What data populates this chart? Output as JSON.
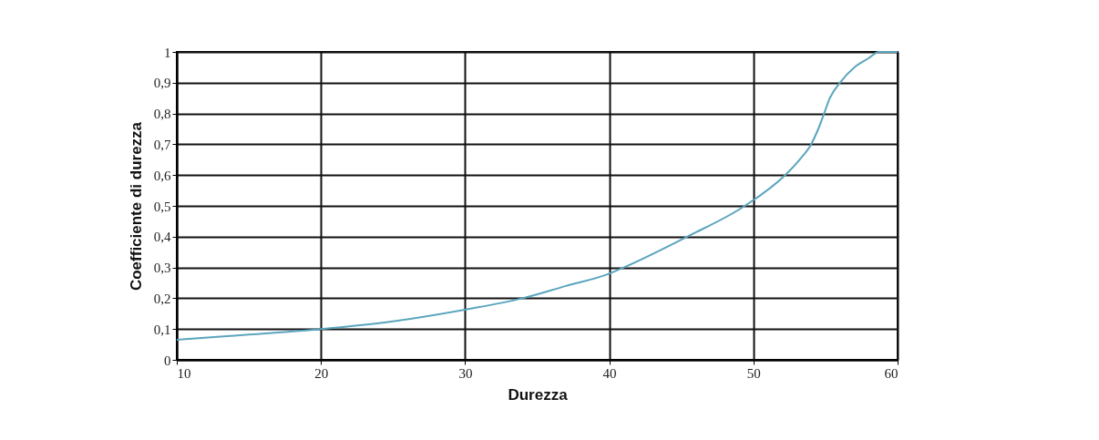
{
  "chart_data": {
    "type": "line",
    "xlabel": "Durezza",
    "ylabel": "Coefficiente di durezza",
    "x": [
      10,
      15,
      20,
      25,
      30,
      34,
      37,
      40,
      41,
      45.4,
      49.4,
      52.2,
      53.2,
      54,
      54.5,
      54.9,
      55.3,
      56,
      57,
      58,
      58.7,
      60
    ],
    "series": [
      {
        "color": "#5aa5bd",
        "values": [
          0.065,
          0.082,
          0.1,
          0.125,
          0.163,
          0.2,
          0.24,
          0.28,
          0.3,
          0.4,
          0.5,
          0.6,
          0.65,
          0.7,
          0.75,
          0.8,
          0.85,
          0.9,
          0.95,
          0.98,
          1,
          1
        ]
      }
    ],
    "xlim": [
      10,
      60
    ],
    "xticks": [
      10,
      20,
      30,
      40,
      50,
      60
    ],
    "ylim": [
      0,
      1
    ],
    "yticks": [
      0,
      {
        "value": 0.1,
        "label": "0,1"
      },
      {
        "value": 0.2,
        "label": "0,2"
      },
      {
        "value": 0.3,
        "label": "0,3"
      },
      {
        "value": 0.4,
        "label": "0,4"
      },
      {
        "value": 0.5,
        "label": "0,5"
      },
      {
        "value": 0.6,
        "label": "0,6"
      },
      {
        "value": 0.7,
        "label": "0,7"
      },
      {
        "value": 0.8,
        "label": "0,8"
      },
      {
        "value": 0.9,
        "label": "0,9"
      },
      1
    ],
    "grid": true,
    "marker": "none",
    "line_style": "solid"
  }
}
